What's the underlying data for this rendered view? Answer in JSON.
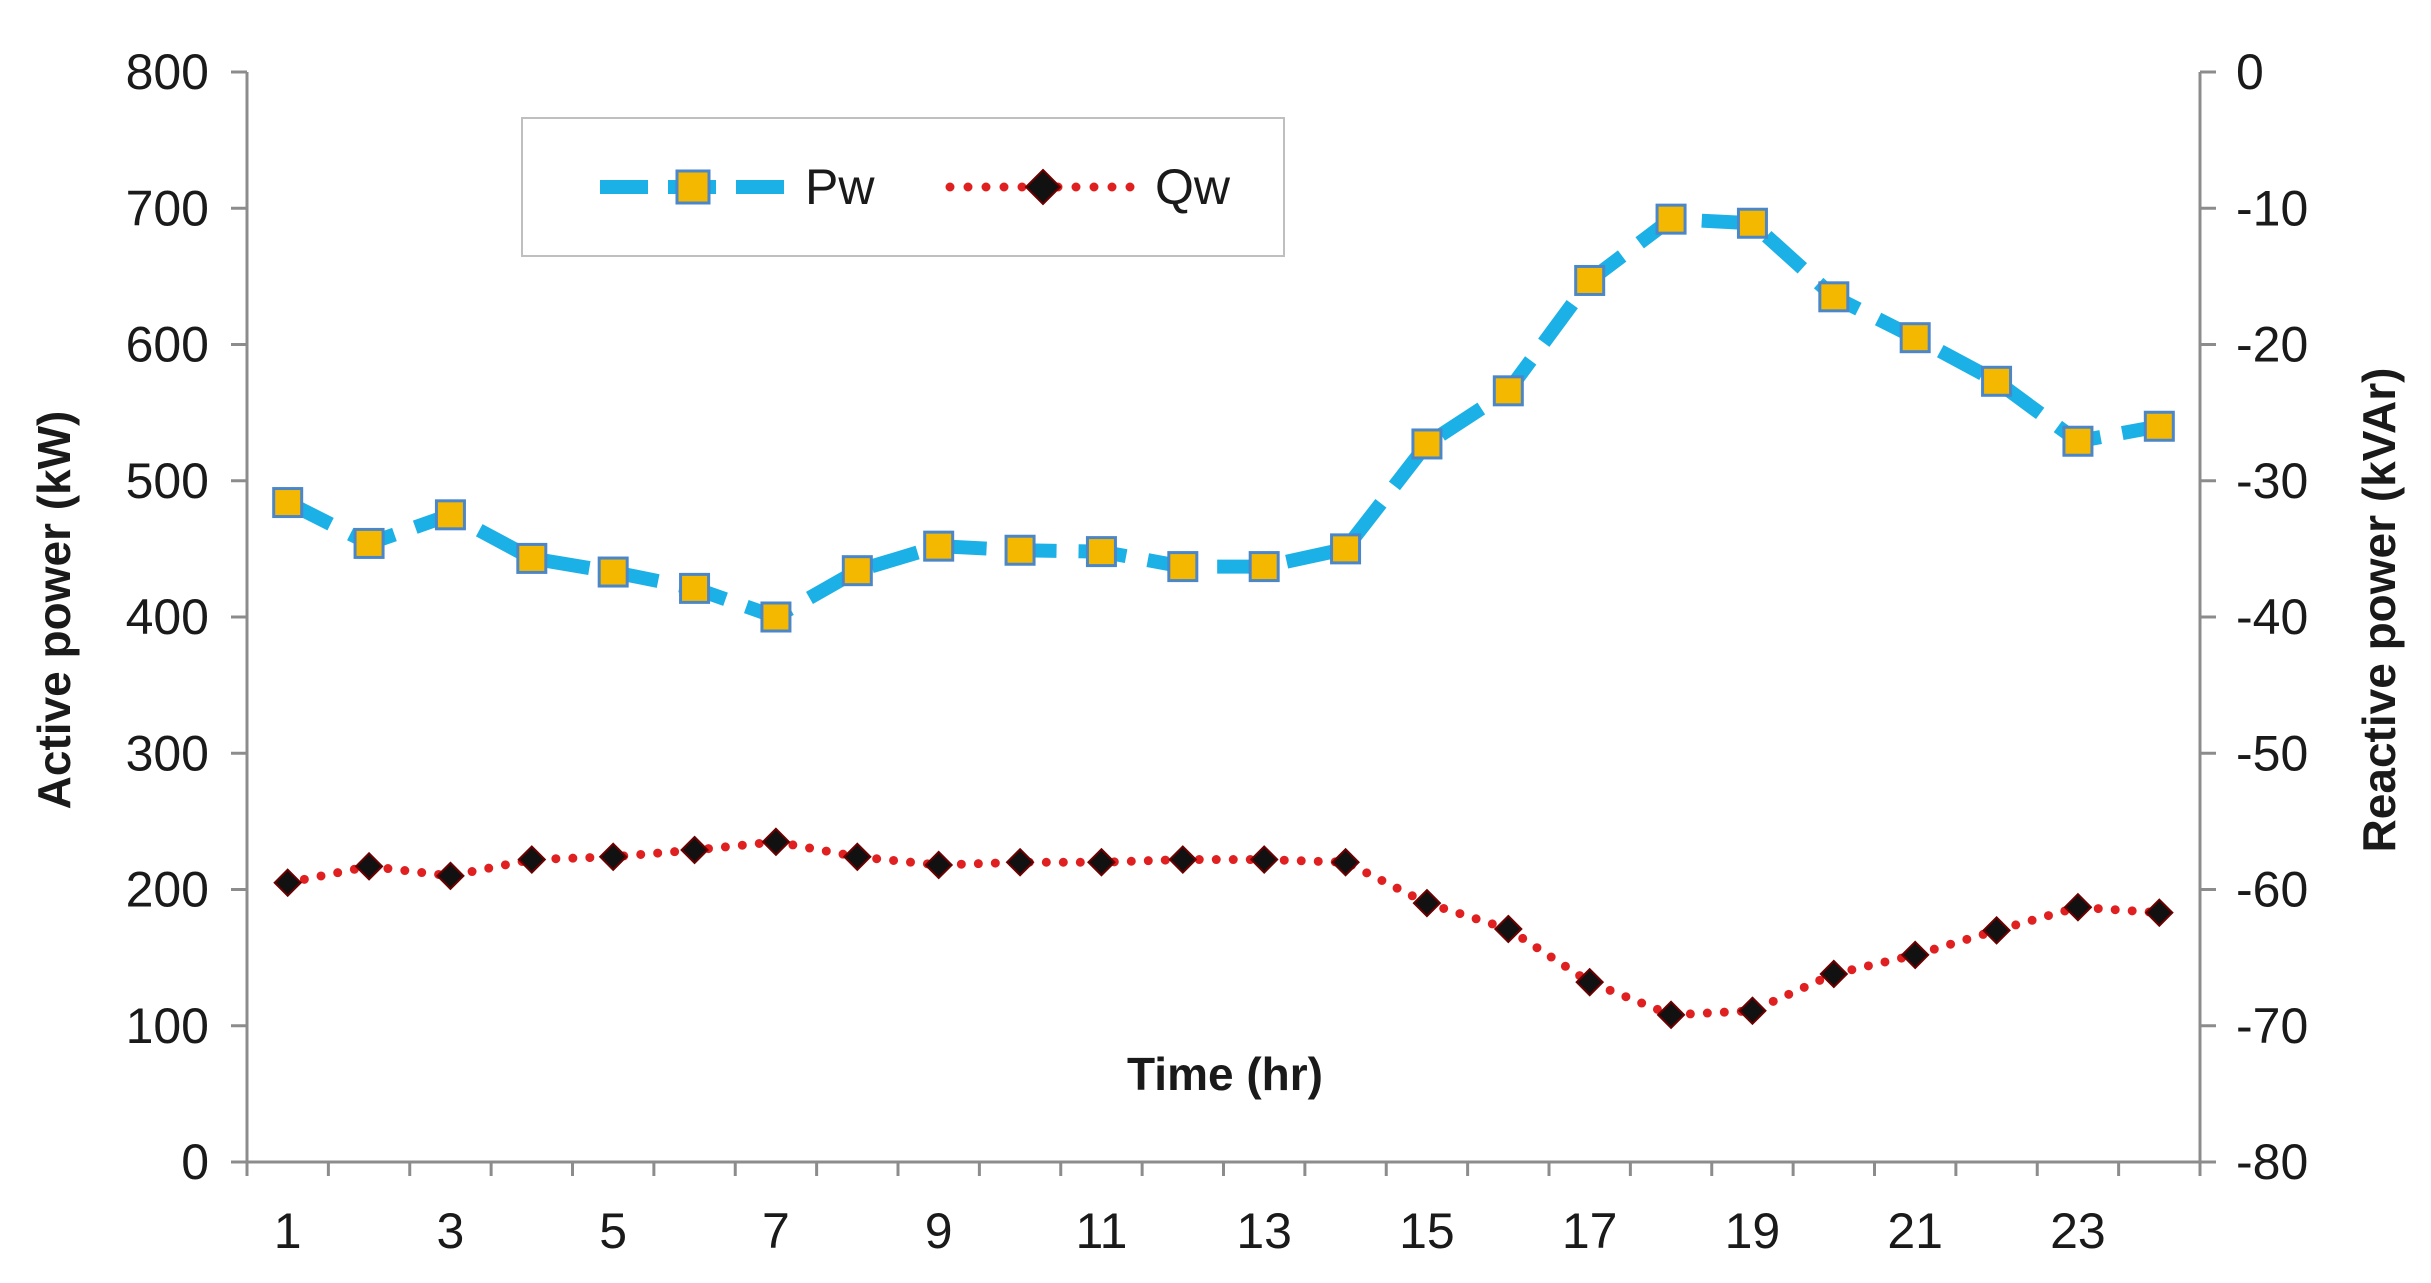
{
  "chart_data": {
    "type": "line",
    "xlabel": "Time (hr)",
    "ylabel": "Active power (kW)",
    "y2label": "Reactive power (kVAr)",
    "x": [
      1,
      2,
      3,
      4,
      5,
      6,
      7,
      8,
      9,
      10,
      11,
      12,
      13,
      14,
      15,
      16,
      17,
      18,
      19,
      20,
      21,
      22,
      23,
      24
    ],
    "x_tick_labels": [
      "1",
      "3",
      "5",
      "7",
      "9",
      "11",
      "13",
      "15",
      "17",
      "19",
      "21",
      "23"
    ],
    "ylim": [
      0,
      800
    ],
    "y_ticks": [
      "0",
      "100",
      "200",
      "300",
      "400",
      "500",
      "600",
      "700",
      "800"
    ],
    "y2lim": [
      -80,
      0
    ],
    "y2_ticks": [
      "-80",
      "-70",
      "-60",
      "-50",
      "-40",
      "-30",
      "-20",
      "-10",
      "0"
    ],
    "grid": false,
    "legend_position": "top-left",
    "series": [
      {
        "name": "Pw",
        "axis": "left",
        "color": "#1BB0E6",
        "marker_color": "#F5B800",
        "line_style": "dashed",
        "marker": "square",
        "values": [
          484,
          454,
          475,
          443,
          433,
          421,
          400,
          434,
          452,
          449,
          448,
          437,
          437,
          450,
          527,
          566,
          647,
          692,
          689,
          635,
          605,
          573,
          529,
          540
        ]
      },
      {
        "name": "Qw",
        "axis": "right",
        "color": "#E02020",
        "marker_color": "#111111",
        "line_style": "dotted",
        "marker": "diamond",
        "values": [
          -59.5,
          -58.3,
          -59.0,
          -57.8,
          -57.6,
          -57.1,
          -56.5,
          -57.6,
          -58.2,
          -58.0,
          -58.0,
          -57.8,
          -57.8,
          -58.0,
          -61.0,
          -62.9,
          -66.8,
          -69.2,
          -68.9,
          -66.2,
          -64.8,
          -63.0,
          -61.3,
          -61.7
        ]
      }
    ]
  }
}
